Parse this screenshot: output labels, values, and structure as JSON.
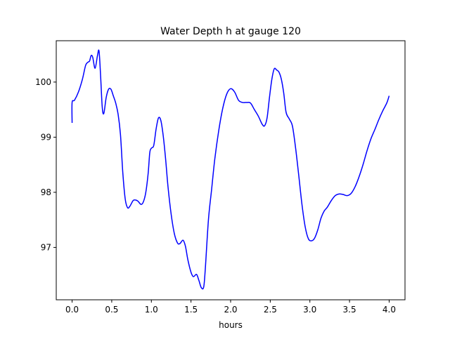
{
  "chart_data": {
    "type": "line",
    "title": "Water Depth h at gauge 120",
    "xlabel": "hours",
    "ylabel": "",
    "xlim": [
      -0.2,
      4.2
    ],
    "ylim": [
      96.05,
      100.75
    ],
    "xticks": [
      0.0,
      0.5,
      1.0,
      1.5,
      2.0,
      2.5,
      3.0,
      3.5,
      4.0
    ],
    "xtick_labels": [
      "0.0",
      "0.5",
      "1.0",
      "1.5",
      "2.0",
      "2.5",
      "3.0",
      "3.5",
      "4.0"
    ],
    "yticks": [
      97,
      98,
      99,
      100
    ],
    "ytick_labels": [
      "97",
      "98",
      "99",
      "100"
    ],
    "grid": false,
    "series": [
      {
        "color": "#0000ff",
        "points": [
          [
            0.0,
            99.26
          ],
          [
            0.0,
            99.63
          ],
          [
            0.03,
            99.67
          ],
          [
            0.08,
            99.82
          ],
          [
            0.13,
            100.05
          ],
          [
            0.17,
            100.3
          ],
          [
            0.2,
            100.36
          ],
          [
            0.22,
            100.38
          ],
          [
            0.24,
            100.48
          ],
          [
            0.26,
            100.45
          ],
          [
            0.29,
            100.25
          ],
          [
            0.32,
            100.48
          ],
          [
            0.34,
            100.56
          ],
          [
            0.36,
            100.1
          ],
          [
            0.38,
            99.55
          ],
          [
            0.4,
            99.43
          ],
          [
            0.43,
            99.72
          ],
          [
            0.46,
            99.87
          ],
          [
            0.49,
            99.87
          ],
          [
            0.52,
            99.75
          ],
          [
            0.55,
            99.62
          ],
          [
            0.58,
            99.42
          ],
          [
            0.61,
            99.05
          ],
          [
            0.64,
            98.35
          ],
          [
            0.67,
            97.88
          ],
          [
            0.7,
            97.72
          ],
          [
            0.73,
            97.75
          ],
          [
            0.77,
            97.85
          ],
          [
            0.8,
            97.86
          ],
          [
            0.83,
            97.84
          ],
          [
            0.87,
            97.78
          ],
          [
            0.9,
            97.83
          ],
          [
            0.93,
            98.0
          ],
          [
            0.96,
            98.35
          ],
          [
            0.98,
            98.72
          ],
          [
            1.0,
            98.8
          ],
          [
            1.03,
            98.85
          ],
          [
            1.06,
            99.15
          ],
          [
            1.09,
            99.35
          ],
          [
            1.12,
            99.3
          ],
          [
            1.15,
            99.02
          ],
          [
            1.18,
            98.6
          ],
          [
            1.21,
            98.1
          ],
          [
            1.25,
            97.6
          ],
          [
            1.29,
            97.25
          ],
          [
            1.33,
            97.08
          ],
          [
            1.36,
            97.07
          ],
          [
            1.4,
            97.13
          ],
          [
            1.43,
            97.02
          ],
          [
            1.46,
            96.78
          ],
          [
            1.5,
            96.55
          ],
          [
            1.53,
            96.47
          ],
          [
            1.57,
            96.51
          ],
          [
            1.6,
            96.4
          ],
          [
            1.63,
            96.27
          ],
          [
            1.66,
            96.28
          ],
          [
            1.68,
            96.6
          ],
          [
            1.72,
            97.5
          ],
          [
            1.76,
            98.05
          ],
          [
            1.8,
            98.6
          ],
          [
            1.85,
            99.12
          ],
          [
            1.9,
            99.52
          ],
          [
            1.95,
            99.78
          ],
          [
            2.0,
            99.88
          ],
          [
            2.05,
            99.82
          ],
          [
            2.1,
            99.67
          ],
          [
            2.15,
            99.63
          ],
          [
            2.2,
            99.63
          ],
          [
            2.25,
            99.62
          ],
          [
            2.3,
            99.5
          ],
          [
            2.35,
            99.38
          ],
          [
            2.4,
            99.23
          ],
          [
            2.43,
            99.21
          ],
          [
            2.46,
            99.35
          ],
          [
            2.49,
            99.72
          ],
          [
            2.52,
            100.05
          ],
          [
            2.55,
            100.24
          ],
          [
            2.58,
            100.22
          ],
          [
            2.61,
            100.18
          ],
          [
            2.64,
            100.05
          ],
          [
            2.67,
            99.8
          ],
          [
            2.7,
            99.45
          ],
          [
            2.74,
            99.33
          ],
          [
            2.78,
            99.2
          ],
          [
            2.82,
            98.8
          ],
          [
            2.86,
            98.3
          ],
          [
            2.9,
            97.78
          ],
          [
            2.94,
            97.38
          ],
          [
            2.98,
            97.16
          ],
          [
            3.02,
            97.12
          ],
          [
            3.06,
            97.17
          ],
          [
            3.1,
            97.32
          ],
          [
            3.14,
            97.53
          ],
          [
            3.18,
            97.66
          ],
          [
            3.22,
            97.73
          ],
          [
            3.27,
            97.85
          ],
          [
            3.32,
            97.94
          ],
          [
            3.37,
            97.97
          ],
          [
            3.42,
            97.96
          ],
          [
            3.47,
            97.94
          ],
          [
            3.52,
            97.98
          ],
          [
            3.57,
            98.1
          ],
          [
            3.62,
            98.28
          ],
          [
            3.67,
            98.5
          ],
          [
            3.72,
            98.75
          ],
          [
            3.77,
            98.97
          ],
          [
            3.82,
            99.14
          ],
          [
            3.87,
            99.32
          ],
          [
            3.92,
            99.48
          ],
          [
            3.97,
            99.62
          ],
          [
            4.0,
            99.75
          ]
        ]
      }
    ]
  }
}
